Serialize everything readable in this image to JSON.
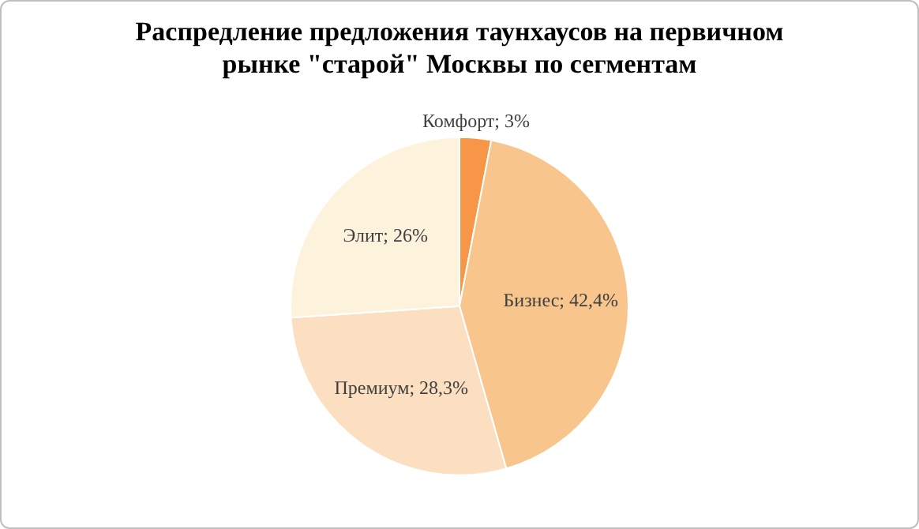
{
  "chart_data": {
    "type": "pie",
    "title": "Распредление предложения таунхаусов на первичном рынке \"старой\" Москвы по сегментам",
    "categories": [
      "Комфорт",
      "Бизнес",
      "Премиум",
      "Элит"
    ],
    "values": [
      3,
      42.4,
      28.3,
      26
    ],
    "colors": [
      "#f79646",
      "#f8c68c",
      "#fbdfc0",
      "#fdf3dc"
    ],
    "value_labels": [
      "3%",
      "42,4%",
      "28,3%",
      "26%"
    ],
    "legend": false
  }
}
